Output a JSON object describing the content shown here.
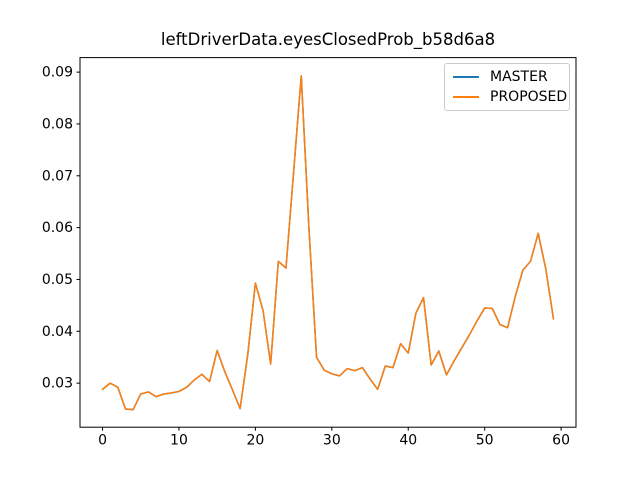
{
  "chart_data": {
    "type": "line",
    "title": "leftDriverData.eyesClosedProb_b58d6a8",
    "xlabel": "",
    "ylabel": "",
    "grid": false,
    "legend_position": "upper right",
    "xlim": [
      -2.95,
      61.95
    ],
    "ylim": [
      0.0215,
      0.0928
    ],
    "xticks": [
      0,
      10,
      20,
      30,
      40,
      50,
      60
    ],
    "xtick_labels": [
      "0",
      "10",
      "20",
      "30",
      "40",
      "50",
      "60"
    ],
    "yticks": [
      0.03,
      0.04,
      0.05,
      0.06,
      0.07,
      0.08,
      0.09
    ],
    "ytick_labels": [
      "0.03",
      "0.04",
      "0.05",
      "0.06",
      "0.07",
      "0.08",
      "0.09"
    ],
    "x": [
      0,
      1,
      2,
      3,
      4,
      5,
      6,
      7,
      8,
      9,
      10,
      11,
      12,
      13,
      14,
      15,
      16,
      17,
      18,
      19,
      20,
      21,
      22,
      23,
      24,
      25,
      26,
      27,
      28,
      29,
      30,
      31,
      32,
      33,
      34,
      35,
      36,
      37,
      38,
      39,
      40,
      41,
      42,
      43,
      44,
      45,
      46,
      47,
      48,
      49,
      50,
      51,
      52,
      53,
      54,
      55,
      56,
      57,
      58,
      59
    ],
    "series": [
      {
        "name": "MASTER",
        "color": "#1f77b4",
        "values": [
          0.0288,
          0.03,
          0.0292,
          0.025,
          0.0249,
          0.0279,
          0.0283,
          0.0274,
          0.0279,
          0.0281,
          0.0284,
          0.0292,
          0.0306,
          0.0317,
          0.0303,
          0.0363,
          0.0322,
          0.0287,
          0.0251,
          0.0355,
          0.0493,
          0.044,
          0.0337,
          0.0535,
          0.0522,
          0.0707,
          0.0893,
          0.06,
          0.035,
          0.0325,
          0.0318,
          0.0314,
          0.0328,
          0.0324,
          0.033,
          0.0308,
          0.0288,
          0.0333,
          0.033,
          0.0376,
          0.0358,
          0.0435,
          0.0465,
          0.0335,
          0.0362,
          0.0316,
          0.0343,
          0.0368,
          0.0393,
          0.042,
          0.0445,
          0.0444,
          0.0413,
          0.0407,
          0.0467,
          0.0518,
          0.0535,
          0.0589,
          0.052,
          0.0424
        ]
      },
      {
        "name": "PROPOSED",
        "color": "#ff7f0e",
        "values": [
          0.0288,
          0.03,
          0.0292,
          0.025,
          0.0249,
          0.0279,
          0.0283,
          0.0274,
          0.0279,
          0.0281,
          0.0284,
          0.0292,
          0.0306,
          0.0317,
          0.0303,
          0.0363,
          0.0322,
          0.0287,
          0.0251,
          0.0355,
          0.0493,
          0.044,
          0.0337,
          0.0535,
          0.0522,
          0.0707,
          0.0893,
          0.06,
          0.035,
          0.0325,
          0.0318,
          0.0314,
          0.0328,
          0.0324,
          0.033,
          0.0308,
          0.0288,
          0.0333,
          0.033,
          0.0376,
          0.0358,
          0.0435,
          0.0465,
          0.0335,
          0.0362,
          0.0316,
          0.0343,
          0.0368,
          0.0393,
          0.042,
          0.0445,
          0.0444,
          0.0413,
          0.0407,
          0.0467,
          0.0518,
          0.0535,
          0.0589,
          0.052,
          0.0424
        ]
      }
    ]
  },
  "style": {
    "axes_color": "#000000",
    "text_color": "#000000",
    "legend_border_color": "#cccccc",
    "background": "#ffffff"
  }
}
